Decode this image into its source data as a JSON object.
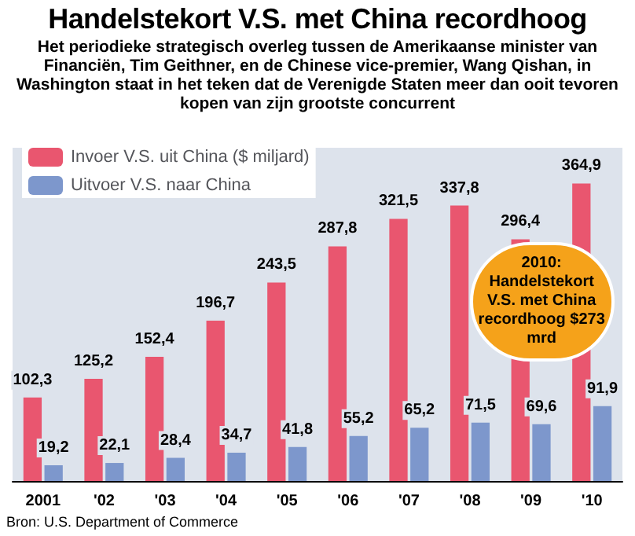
{
  "chart_data": {
    "type": "bar",
    "title": "Handelstekort V.S. met China recordhoog",
    "subtitle": "Het periodieke strategisch overleg tussen de Amerikaanse minister van Financiën, Tim Geithner, en de Chinese vice-premier, Wang Qishan, in Washington staat in het teken dat de Verenigde Staten meer dan ooit tevoren kopen van zijn grootste concurrent",
    "categories": [
      "2001",
      "'02",
      "'03",
      "'04",
      "'05",
      "'06",
      "'07",
      "'08",
      "'09",
      "'10"
    ],
    "series": [
      {
        "name": "Invoer V.S. uit China ($ miljard)",
        "color": "#e9566f",
        "values": [
          102.3,
          125.2,
          152.4,
          196.7,
          243.5,
          287.8,
          321.5,
          337.8,
          296.4,
          364.9
        ],
        "value_labels": [
          "102,3",
          "125,2",
          "152,4",
          "196,7",
          "243,5",
          "287,8",
          "321,5",
          "337,8",
          "296,4",
          "364,9"
        ]
      },
      {
        "name": "Uitvoer V.S. naar China",
        "color": "#7d97cc",
        "values": [
          19.2,
          22.1,
          28.4,
          34.7,
          41.8,
          55.2,
          65.2,
          71.5,
          69.6,
          91.9
        ],
        "value_labels": [
          "19,2",
          "22,1",
          "28,4",
          "34,7",
          "41,8",
          "55,2",
          "65,2",
          "71,5",
          "69,6",
          "91,9"
        ]
      }
    ],
    "legend": "top left",
    "annotations": [
      {
        "text": "2010: Handelstekort V.S. met China recordhoog $273 mrd",
        "x": "'10",
        "y": 273
      },
      "Bron: U.S. Department of Commerce"
    ]
  }
}
